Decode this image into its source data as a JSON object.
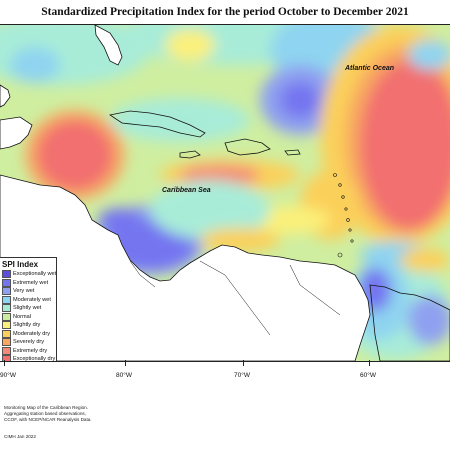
{
  "title": "Standardized Precipitation Index for the period October to December 2021",
  "labels": {
    "atlantic": "Atlantic Ocean",
    "caribbean": "Caribbean Sea"
  },
  "legend": {
    "title": "SPI Index",
    "items": [
      {
        "label": "Exceptionally wet",
        "color": "#5b4fe0"
      },
      {
        "label": "Extremely wet",
        "color": "#7474f0"
      },
      {
        "label": "Very wet",
        "color": "#8fa0f0"
      },
      {
        "label": "Moderately wet",
        "color": "#8fd4f0"
      },
      {
        "label": "Slightly wet",
        "color": "#a8ecd8"
      },
      {
        "label": "Normal",
        "color": "#cdeea0"
      },
      {
        "label": "Slightly dry",
        "color": "#fbf07a"
      },
      {
        "label": "Moderately dry",
        "color": "#fbd05a"
      },
      {
        "label": "Severely dry",
        "color": "#f8a860"
      },
      {
        "label": "Extremely dry",
        "color": "#f48a78"
      },
      {
        "label": "Exceptionally dry",
        "color": "#f27070"
      }
    ]
  },
  "axis": {
    "ticks": [
      "90°W",
      "80°W",
      "70°W",
      "60°W"
    ]
  },
  "footnote": {
    "line1": "Monitoring Map of the Caribbean Region.",
    "line2": "Aggregating station based observations,",
    "line3": "CCOF, with NCEP/NCAR Reanalysis Data."
  },
  "credit": "CIMH Jan 2022"
}
